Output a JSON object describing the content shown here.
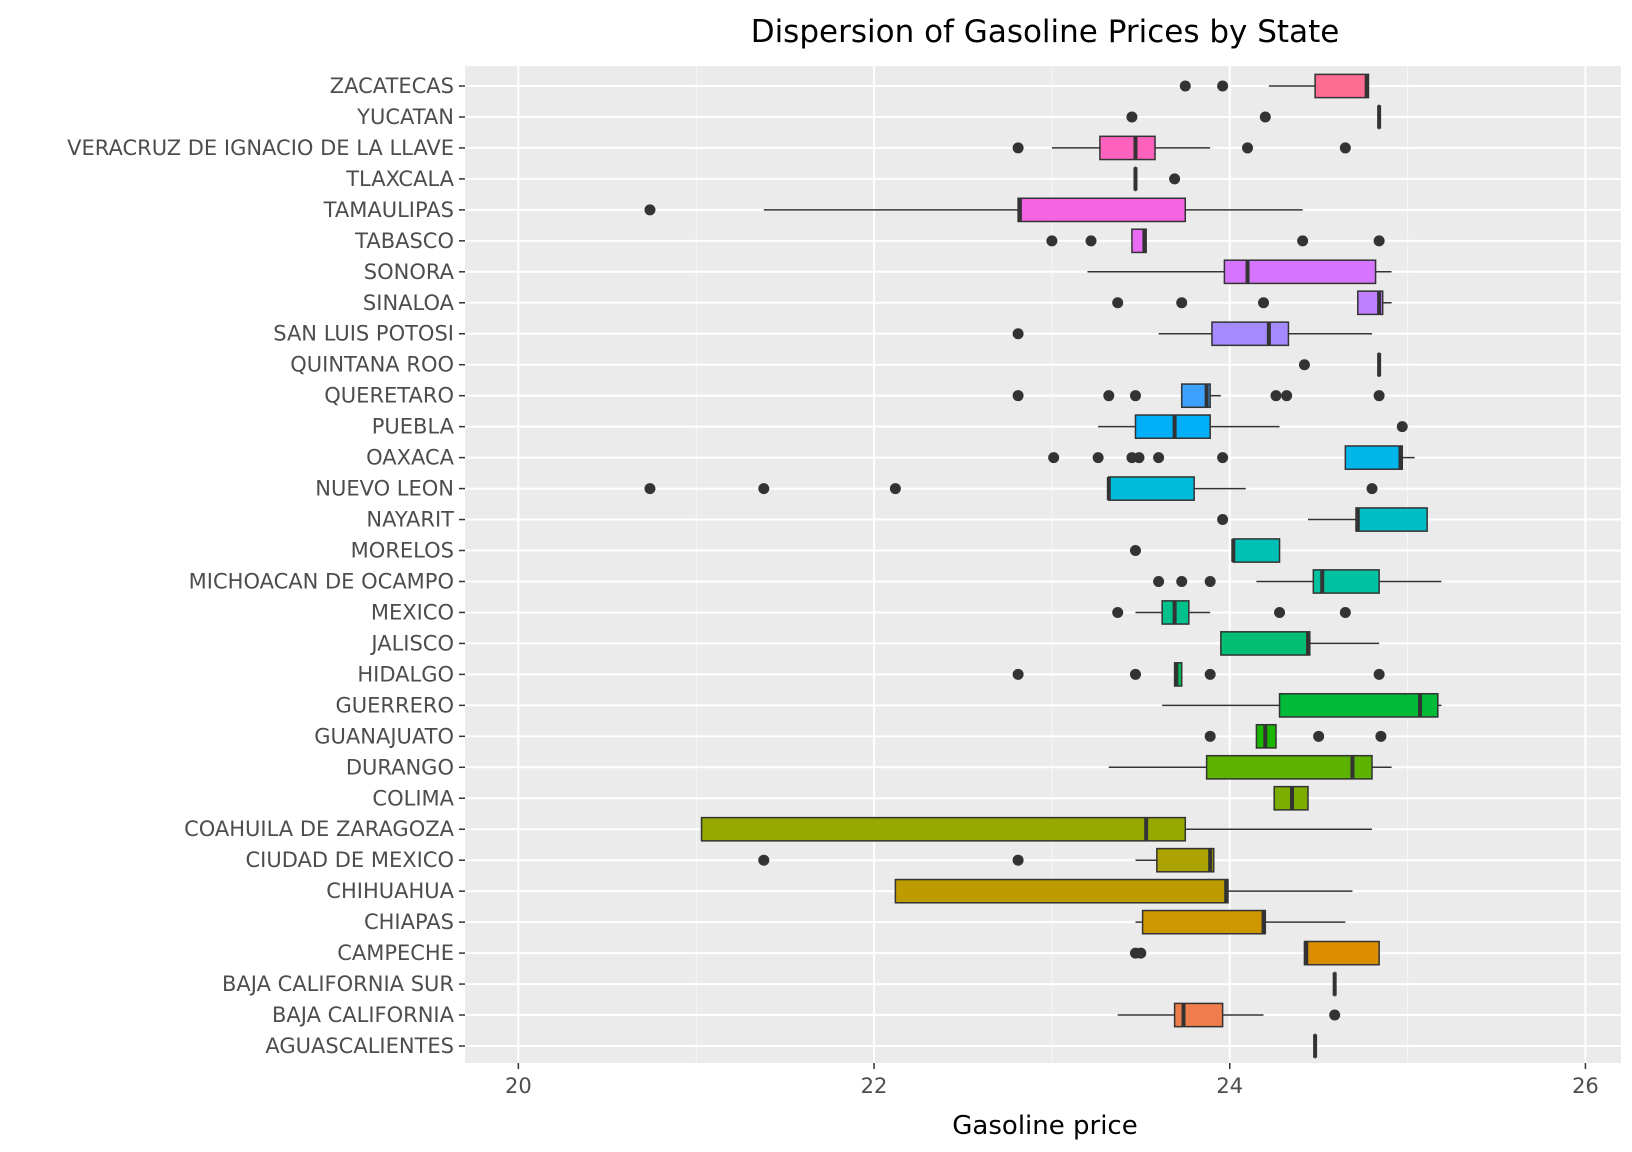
{
  "chart_data": {
    "type": "boxplot",
    "title": "Dispersion of Gasoline Prices by State",
    "xlabel": "Gasoline price",
    "ylabel": "",
    "xlim": [
      19.7,
      26.2
    ],
    "xticks": [
      20,
      22,
      24,
      26
    ],
    "grid": true,
    "legend": "none",
    "categories": [
      {
        "name": "AGUASCALIENTES",
        "color": "#F8766D",
        "q1": 24.48,
        "median": 24.48,
        "q3": 24.48,
        "whisker_low": 24.48,
        "whisker_high": 24.48,
        "outliers": []
      },
      {
        "name": "BAJA CALIFORNIA",
        "color": "#F07E4C",
        "q1": 23.69,
        "median": 23.74,
        "q3": 23.96,
        "whisker_low": 23.37,
        "whisker_high": 24.19,
        "outliers": [
          24.59
        ]
      },
      {
        "name": "BAJA CALIFORNIA SUR",
        "color": "#E7861B",
        "q1": 24.59,
        "median": 24.59,
        "q3": 24.59,
        "whisker_low": 24.59,
        "whisker_high": 24.59,
        "outliers": []
      },
      {
        "name": "CAMPECHE",
        "color": "#DB8E00",
        "q1": 24.42,
        "median": 24.43,
        "q3": 24.84,
        "whisker_low": 24.42,
        "whisker_high": 24.84,
        "outliers": [
          23.47,
          23.5
        ]
      },
      {
        "name": "CHIAPAS",
        "color": "#CE9700",
        "q1": 23.51,
        "median": 24.19,
        "q3": 24.2,
        "whisker_low": 23.47,
        "whisker_high": 24.65,
        "outliers": []
      },
      {
        "name": "CHIHUAHUA",
        "color": "#BE9C00",
        "q1": 22.12,
        "median": 23.98,
        "q3": 23.99,
        "whisker_low": 22.12,
        "whisker_high": 24.69,
        "outliers": []
      },
      {
        "name": "CIUDAD DE MEXICO",
        "color": "#ACA300",
        "q1": 23.59,
        "median": 23.89,
        "q3": 23.91,
        "whisker_low": 23.47,
        "whisker_high": 23.91,
        "outliers": [
          21.38,
          22.81
        ]
      },
      {
        "name": "COAHUILA DE ZARAGOZA",
        "color": "#96A900",
        "q1": 21.03,
        "median": 23.53,
        "q3": 23.75,
        "whisker_low": 21.03,
        "whisker_high": 24.8,
        "outliers": []
      },
      {
        "name": "COLIMA",
        "color": "#7CAE00",
        "q1": 24.25,
        "median": 24.35,
        "q3": 24.44,
        "whisker_low": 24.25,
        "whisker_high": 24.44,
        "outliers": []
      },
      {
        "name": "DURANGO",
        "color": "#5BB300",
        "q1": 23.87,
        "median": 24.69,
        "q3": 24.8,
        "whisker_low": 23.32,
        "whisker_high": 24.91,
        "outliers": []
      },
      {
        "name": "GUANAJUATO",
        "color": "#1AB600",
        "q1": 24.15,
        "median": 24.2,
        "q3": 24.26,
        "whisker_low": 24.15,
        "whisker_high": 24.26,
        "outliers": [
          23.89,
          24.5,
          24.85
        ]
      },
      {
        "name": "GUERRERO",
        "color": "#00BA38",
        "q1": 24.28,
        "median": 25.07,
        "q3": 25.17,
        "whisker_low": 23.62,
        "whisker_high": 25.19,
        "outliers": []
      },
      {
        "name": "HIDALGO",
        "color": "#00BC59",
        "q1": 23.69,
        "median": 23.7,
        "q3": 23.73,
        "whisker_low": 23.69,
        "whisker_high": 23.73,
        "outliers": [
          22.81,
          23.47,
          23.89,
          24.84
        ]
      },
      {
        "name": "JALISCO",
        "color": "#00BE74",
        "q1": 23.95,
        "median": 24.44,
        "q3": 24.45,
        "whisker_low": 23.95,
        "whisker_high": 24.84,
        "outliers": []
      },
      {
        "name": "MEXICO",
        "color": "#00C08B",
        "q1": 23.62,
        "median": 23.69,
        "q3": 23.77,
        "whisker_low": 23.47,
        "whisker_high": 23.89,
        "outliers": [
          23.37,
          24.28,
          24.65
        ]
      },
      {
        "name": "MICHOACAN DE OCAMPO",
        "color": "#00C1A0",
        "q1": 24.47,
        "median": 24.52,
        "q3": 24.84,
        "whisker_low": 24.15,
        "whisker_high": 25.19,
        "outliers": [
          23.6,
          23.73,
          23.89
        ]
      },
      {
        "name": "MORELOS",
        "color": "#00C0B5",
        "q1": 24.02,
        "median": 24.02,
        "q3": 24.28,
        "whisker_low": 24.02,
        "whisker_high": 24.28,
        "outliers": [
          23.47
        ]
      },
      {
        "name": "NAYARIT",
        "color": "#00BFC4",
        "q1": 24.71,
        "median": 24.72,
        "q3": 25.11,
        "whisker_low": 24.44,
        "whisker_high": 25.11,
        "outliers": [
          23.96
        ]
      },
      {
        "name": "NUEVO LEON",
        "color": "#00BBDA",
        "q1": 23.32,
        "median": 23.32,
        "q3": 23.8,
        "whisker_low": 23.32,
        "whisker_high": 24.09,
        "outliers": [
          20.74,
          21.38,
          22.12,
          24.8
        ]
      },
      {
        "name": "OAXACA",
        "color": "#00B6EB",
        "q1": 24.65,
        "median": 24.96,
        "q3": 24.97,
        "whisker_low": 24.65,
        "whisker_high": 25.04,
        "outliers": [
          23.01,
          23.26,
          23.45,
          23.49,
          23.6,
          23.96
        ]
      },
      {
        "name": "PUEBLA",
        "color": "#00AFF8",
        "q1": 23.47,
        "median": 23.69,
        "q3": 23.89,
        "whisker_low": 23.26,
        "whisker_high": 24.28,
        "outliers": [
          24.97
        ]
      },
      {
        "name": "QUERETARO",
        "color": "#3DA1FF",
        "q1": 23.73,
        "median": 23.87,
        "q3": 23.89,
        "whisker_low": 23.73,
        "whisker_high": 23.95,
        "outliers": [
          22.81,
          23.32,
          23.47,
          24.26,
          24.32,
          24.84
        ]
      },
      {
        "name": "QUINTANA ROO",
        "color": "#8A9BFF",
        "q1": 24.84,
        "median": 24.84,
        "q3": 24.84,
        "whisker_low": 24.84,
        "whisker_high": 24.84,
        "outliers": [
          24.42
        ]
      },
      {
        "name": "SAN LUIS POTOSI",
        "color": "#A58AFF",
        "q1": 23.9,
        "median": 24.22,
        "q3": 24.33,
        "whisker_low": 23.6,
        "whisker_high": 24.8,
        "outliers": [
          22.81
        ]
      },
      {
        "name": "SINALOA",
        "color": "#BE80FF",
        "q1": 24.72,
        "median": 24.84,
        "q3": 24.86,
        "whisker_low": 24.72,
        "whisker_high": 24.91,
        "outliers": [
          23.37,
          23.73,
          24.19
        ]
      },
      {
        "name": "SONORA",
        "color": "#D575FE",
        "q1": 23.97,
        "median": 24.1,
        "q3": 24.82,
        "whisker_low": 23.2,
        "whisker_high": 24.91,
        "outliers": []
      },
      {
        "name": "TABASCO",
        "color": "#E76BF3",
        "q1": 23.45,
        "median": 23.52,
        "q3": 23.53,
        "whisker_low": 23.45,
        "whisker_high": 23.53,
        "outliers": [
          23.0,
          23.22,
          24.41,
          24.84
        ]
      },
      {
        "name": "TAMAULIPAS",
        "color": "#F564E3",
        "q1": 22.81,
        "median": 22.82,
        "q3": 23.75,
        "whisker_low": 21.38,
        "whisker_high": 24.41,
        "outliers": [
          20.74
        ]
      },
      {
        "name": "TLAXCALA",
        "color": "#FD61D3",
        "q1": 23.47,
        "median": 23.47,
        "q3": 23.47,
        "whisker_low": 23.47,
        "whisker_high": 23.47,
        "outliers": [
          23.69
        ]
      },
      {
        "name": "VERACRUZ DE IGNACIO DE LA LLAVE",
        "color": "#FF62BC",
        "q1": 23.27,
        "median": 23.47,
        "q3": 23.58,
        "whisker_low": 23.0,
        "whisker_high": 23.89,
        "outliers": [
          22.81,
          24.1,
          24.65
        ]
      },
      {
        "name": "YUCATAN",
        "color": "#FF65AE",
        "q1": 24.84,
        "median": 24.84,
        "q3": 24.84,
        "whisker_low": 24.84,
        "whisker_high": 24.84,
        "outliers": [
          23.45,
          24.2
        ]
      },
      {
        "name": "ZACATECAS",
        "color": "#FF6C91",
        "q1": 24.48,
        "median": 24.77,
        "q3": 24.78,
        "whisker_low": 24.22,
        "whisker_high": 24.78,
        "outliers": [
          23.75,
          23.96
        ]
      }
    ]
  },
  "colors": {
    "panel_background": "#EBEBEB",
    "grid_major": "#FFFFFF",
    "outline": "#333333"
  }
}
